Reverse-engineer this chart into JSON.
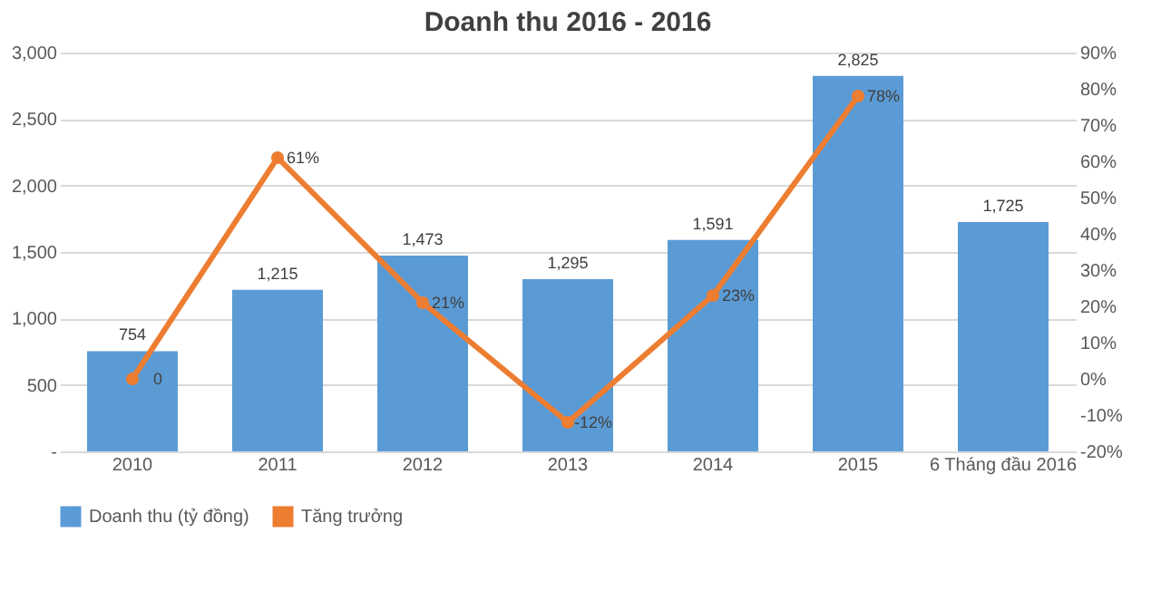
{
  "chart_data": {
    "type": "bar",
    "title": "Doanh thu 2016 - 2016",
    "categories": [
      "2010",
      "2011",
      "2012",
      "2013",
      "2014",
      "2015",
      "6 Tháng đầu 2016"
    ],
    "series": [
      {
        "name": "Doanh thu (tỷ đồng)",
        "color": "#5b9bd5",
        "values": [
          754,
          1215,
          1473,
          1295,
          1591,
          2825,
          1725
        ],
        "value_labels": [
          "754",
          "1,215",
          "1,473",
          "1,295",
          "1,591",
          "2,825",
          "1,725"
        ]
      },
      {
        "name": "Tăng trưởng",
        "type": "line",
        "axis": "y2",
        "color": "#ed7d31",
        "marker": "circle",
        "values": [
          0,
          61,
          21,
          -12,
          23,
          78,
          null
        ],
        "value_labels": [
          "0",
          "61%",
          "21%",
          "-12%",
          "23%",
          "78%",
          null
        ]
      }
    ],
    "ylim": [
      0,
      3000
    ],
    "yticks": [
      {
        "value": 0,
        "label": "-"
      },
      {
        "value": 500,
        "label": "500"
      },
      {
        "value": 1000,
        "label": "1,000"
      },
      {
        "value": 1500,
        "label": "1,500"
      },
      {
        "value": 2000,
        "label": "2,000"
      },
      {
        "value": 2500,
        "label": "2,500"
      },
      {
        "value": 3000,
        "label": "3,000"
      }
    ],
    "y2lim": [
      -20,
      90
    ],
    "y2ticks": [
      {
        "value": -20,
        "label": "-20%"
      },
      {
        "value": -10,
        "label": "-10%"
      },
      {
        "value": 0,
        "label": "0%"
      },
      {
        "value": 10,
        "label": "10%"
      },
      {
        "value": 20,
        "label": "20%"
      },
      {
        "value": 30,
        "label": "30%"
      },
      {
        "value": 40,
        "label": "40%"
      },
      {
        "value": 50,
        "label": "50%"
      },
      {
        "value": 60,
        "label": "60%"
      },
      {
        "value": 70,
        "label": "70%"
      },
      {
        "value": 80,
        "label": "80%"
      },
      {
        "value": 90,
        "label": "90%"
      }
    ],
    "grid": "y",
    "legend": "bottom"
  }
}
